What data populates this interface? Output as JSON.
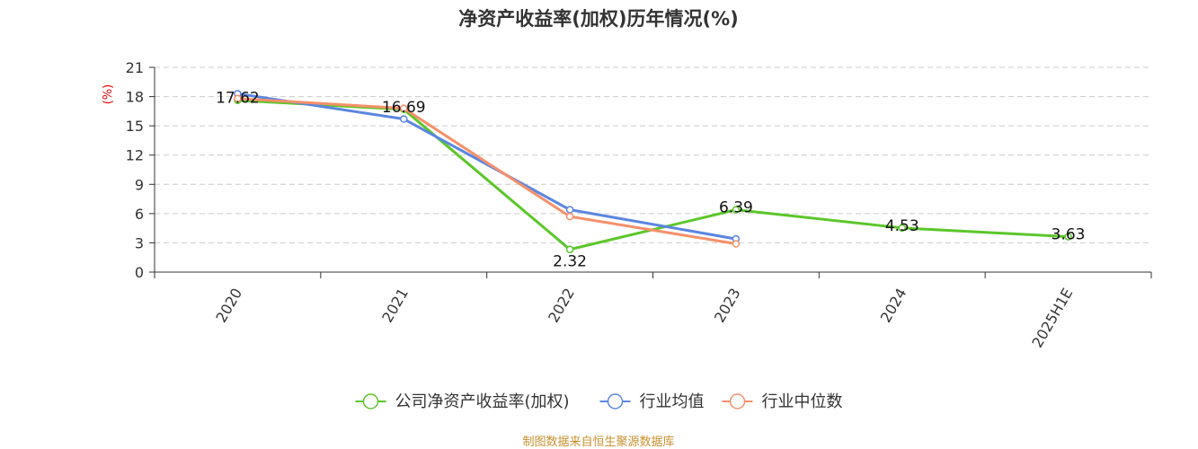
{
  "chart_data": {
    "type": "line",
    "title": "净资产收益率(加权)历年情况(%)",
    "ylabel": "(%)",
    "ylim": [
      0,
      21
    ],
    "yticks": [
      0,
      3,
      6,
      9,
      12,
      15,
      18,
      21
    ],
    "categories": [
      "2020",
      "2021",
      "2022",
      "2023",
      "2024",
      "2025H1E"
    ],
    "grid": true,
    "legend_position": "bottom",
    "series": [
      {
        "name": "公司净资产收益率(加权)",
        "color": "#5cc62b",
        "values": [
          17.62,
          16.69,
          2.32,
          6.39,
          4.53,
          3.63
        ],
        "labels": [
          "17.62",
          "16.69",
          "2.32",
          "6.39",
          "4.53",
          "3.63"
        ]
      },
      {
        "name": "行业均值",
        "color": "#5b86e0",
        "values": [
          18.3,
          15.7,
          6.4,
          3.4,
          null,
          null
        ]
      },
      {
        "name": "行业中位数",
        "color": "#f5906b",
        "values": [
          17.8,
          16.8,
          5.7,
          2.9,
          null,
          null
        ]
      }
    ],
    "source": "制图数据来自恒生聚源数据库"
  }
}
